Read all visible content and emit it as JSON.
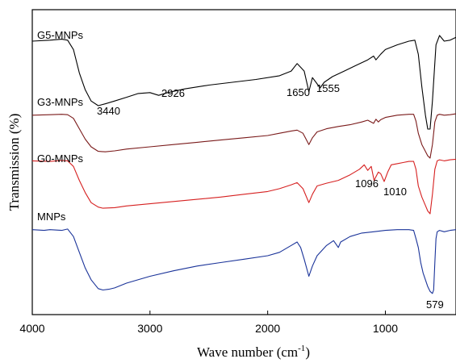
{
  "chart_data": {
    "type": "line",
    "title": "",
    "xlabel": "Wave number (cm",
    "xlabel_sup": "-1",
    "xlabel_end": ")",
    "ylabel": "Transmission (%)",
    "xlim": [
      4000,
      400
    ],
    "x_reversed": true,
    "xticks": [
      4000,
      3000,
      2000,
      1000
    ],
    "yticks": [],
    "grid": false,
    "series": [
      {
        "name": "G5-MNPs",
        "color": "#000000",
        "offset": 3,
        "points": [
          [
            4000,
            0.94
          ],
          [
            3850,
            0.95
          ],
          [
            3750,
            0.96
          ],
          [
            3700,
            0.95
          ],
          [
            3650,
            0.85
          ],
          [
            3600,
            0.6
          ],
          [
            3550,
            0.42
          ],
          [
            3500,
            0.3
          ],
          [
            3440,
            0.25
          ],
          [
            3380,
            0.27
          ],
          [
            3300,
            0.3
          ],
          [
            3200,
            0.34
          ],
          [
            3100,
            0.38
          ],
          [
            3000,
            0.39
          ],
          [
            2926,
            0.36
          ],
          [
            2850,
            0.39
          ],
          [
            2700,
            0.43
          ],
          [
            2500,
            0.47
          ],
          [
            2300,
            0.5
          ],
          [
            2100,
            0.53
          ],
          [
            1900,
            0.57
          ],
          [
            1800,
            0.62
          ],
          [
            1750,
            0.7
          ],
          [
            1720,
            0.66
          ],
          [
            1690,
            0.62
          ],
          [
            1650,
            0.4
          ],
          [
            1620,
            0.55
          ],
          [
            1590,
            0.5
          ],
          [
            1555,
            0.44
          ],
          [
            1520,
            0.5
          ],
          [
            1450,
            0.56
          ],
          [
            1350,
            0.62
          ],
          [
            1250,
            0.68
          ],
          [
            1150,
            0.74
          ],
          [
            1100,
            0.78
          ],
          [
            1080,
            0.74
          ],
          [
            1040,
            0.8
          ],
          [
            1000,
            0.85
          ],
          [
            900,
            0.9
          ],
          [
            800,
            0.94
          ],
          [
            750,
            0.95
          ],
          [
            720,
            0.8
          ],
          [
            690,
            0.45
          ],
          [
            660,
            0.15
          ],
          [
            640,
            0.0
          ],
          [
            620,
            0.0
          ],
          [
            600,
            0.3
          ],
          [
            570,
            0.9
          ],
          [
            540,
            1.0
          ],
          [
            500,
            0.94
          ],
          [
            450,
            0.95
          ],
          [
            400,
            0.98
          ]
        ]
      },
      {
        "name": "G3-MNPs",
        "color": "#7a1a1a",
        "offset": 2,
        "points": [
          [
            4000,
            0.95
          ],
          [
            3850,
            0.96
          ],
          [
            3750,
            0.97
          ],
          [
            3700,
            0.96
          ],
          [
            3650,
            0.88
          ],
          [
            3600,
            0.65
          ],
          [
            3550,
            0.42
          ],
          [
            3500,
            0.25
          ],
          [
            3440,
            0.15
          ],
          [
            3380,
            0.14
          ],
          [
            3300,
            0.16
          ],
          [
            3200,
            0.2
          ],
          [
            3000,
            0.25
          ],
          [
            2800,
            0.3
          ],
          [
            2600,
            0.35
          ],
          [
            2400,
            0.4
          ],
          [
            2200,
            0.45
          ],
          [
            2000,
            0.5
          ],
          [
            1900,
            0.55
          ],
          [
            1800,
            0.6
          ],
          [
            1750,
            0.62
          ],
          [
            1700,
            0.55
          ],
          [
            1650,
            0.3
          ],
          [
            1620,
            0.45
          ],
          [
            1580,
            0.58
          ],
          [
            1500,
            0.65
          ],
          [
            1400,
            0.7
          ],
          [
            1300,
            0.74
          ],
          [
            1200,
            0.8
          ],
          [
            1150,
            0.84
          ],
          [
            1100,
            0.77
          ],
          [
            1080,
            0.86
          ],
          [
            1060,
            0.8
          ],
          [
            1040,
            0.85
          ],
          [
            1000,
            0.9
          ],
          [
            900,
            0.95
          ],
          [
            800,
            0.97
          ],
          [
            760,
            0.97
          ],
          [
            740,
            0.82
          ],
          [
            720,
            0.55
          ],
          [
            690,
            0.3
          ],
          [
            660,
            0.15
          ],
          [
            640,
            0.05
          ],
          [
            620,
            0.0
          ],
          [
            600,
            0.3
          ],
          [
            580,
            0.8
          ],
          [
            560,
            0.95
          ],
          [
            540,
            0.97
          ],
          [
            500,
            0.95
          ],
          [
            450,
            0.96
          ],
          [
            400,
            0.98
          ]
        ]
      },
      {
        "name": "G0-MNPs",
        "color": "#d62020",
        "offset": 1,
        "points": [
          [
            4000,
            0.95
          ],
          [
            3850,
            0.94
          ],
          [
            3750,
            0.96
          ],
          [
            3700,
            0.95
          ],
          [
            3650,
            0.85
          ],
          [
            3600,
            0.6
          ],
          [
            3550,
            0.38
          ],
          [
            3500,
            0.2
          ],
          [
            3440,
            0.12
          ],
          [
            3400,
            0.1
          ],
          [
            3300,
            0.11
          ],
          [
            3200,
            0.14
          ],
          [
            3000,
            0.18
          ],
          [
            2800,
            0.22
          ],
          [
            2600,
            0.26
          ],
          [
            2400,
            0.3
          ],
          [
            2200,
            0.35
          ],
          [
            2000,
            0.4
          ],
          [
            1900,
            0.45
          ],
          [
            1800,
            0.52
          ],
          [
            1750,
            0.56
          ],
          [
            1700,
            0.45
          ],
          [
            1650,
            0.2
          ],
          [
            1620,
            0.35
          ],
          [
            1580,
            0.5
          ],
          [
            1500,
            0.55
          ],
          [
            1400,
            0.6
          ],
          [
            1300,
            0.7
          ],
          [
            1220,
            0.8
          ],
          [
            1180,
            0.88
          ],
          [
            1150,
            0.78
          ],
          [
            1120,
            0.85
          ],
          [
            1096,
            0.6
          ],
          [
            1060,
            0.75
          ],
          [
            1040,
            0.72
          ],
          [
            1010,
            0.58
          ],
          [
            980,
            0.75
          ],
          [
            950,
            0.88
          ],
          [
            900,
            0.9
          ],
          [
            850,
            0.92
          ],
          [
            800,
            0.94
          ],
          [
            760,
            0.94
          ],
          [
            740,
            0.8
          ],
          [
            720,
            0.5
          ],
          [
            690,
            0.3
          ],
          [
            660,
            0.15
          ],
          [
            640,
            0.05
          ],
          [
            620,
            0.0
          ],
          [
            600,
            0.35
          ],
          [
            580,
            0.8
          ],
          [
            560,
            0.95
          ],
          [
            540,
            0.97
          ],
          [
            500,
            0.95
          ],
          [
            450,
            0.97
          ],
          [
            400,
            0.98
          ]
        ]
      },
      {
        "name": "MNPs",
        "color": "#1a3399",
        "offset": 0,
        "points": [
          [
            4000,
            0.98
          ],
          [
            3900,
            0.97
          ],
          [
            3850,
            0.98
          ],
          [
            3750,
            0.97
          ],
          [
            3700,
            0.99
          ],
          [
            3650,
            0.88
          ],
          [
            3600,
            0.65
          ],
          [
            3550,
            0.42
          ],
          [
            3500,
            0.25
          ],
          [
            3440,
            0.12
          ],
          [
            3400,
            0.1
          ],
          [
            3350,
            0.11
          ],
          [
            3300,
            0.13
          ],
          [
            3200,
            0.2
          ],
          [
            3000,
            0.3
          ],
          [
            2800,
            0.38
          ],
          [
            2600,
            0.45
          ],
          [
            2400,
            0.5
          ],
          [
            2200,
            0.55
          ],
          [
            2000,
            0.6
          ],
          [
            1900,
            0.65
          ],
          [
            1800,
            0.75
          ],
          [
            1750,
            0.8
          ],
          [
            1720,
            0.72
          ],
          [
            1690,
            0.55
          ],
          [
            1650,
            0.3
          ],
          [
            1620,
            0.45
          ],
          [
            1580,
            0.6
          ],
          [
            1500,
            0.75
          ],
          [
            1440,
            0.82
          ],
          [
            1400,
            0.72
          ],
          [
            1380,
            0.8
          ],
          [
            1300,
            0.88
          ],
          [
            1200,
            0.93
          ],
          [
            1100,
            0.95
          ],
          [
            1000,
            0.97
          ],
          [
            900,
            0.98
          ],
          [
            800,
            0.98
          ],
          [
            760,
            0.97
          ],
          [
            740,
            0.85
          ],
          [
            720,
            0.72
          ],
          [
            700,
            0.5
          ],
          [
            680,
            0.35
          ],
          [
            660,
            0.25
          ],
          [
            640,
            0.15
          ],
          [
            620,
            0.08
          ],
          [
            600,
            0.05
          ],
          [
            590,
            0.1
          ],
          [
            580,
            0.5
          ],
          [
            570,
            0.85
          ],
          [
            560,
            0.95
          ],
          [
            540,
            0.97
          ],
          [
            500,
            0.95
          ],
          [
            450,
            0.97
          ],
          [
            400,
            0.98
          ]
        ]
      }
    ],
    "annotations": [
      {
        "text": "3440",
        "x": 3440,
        "series": "G5-MNPs"
      },
      {
        "text": "2926",
        "x": 2926,
        "series": "G5-MNPs"
      },
      {
        "text": "1650",
        "x": 1650,
        "series": "G5-MNPs"
      },
      {
        "text": "1555",
        "x": 1555,
        "series": "G5-MNPs"
      },
      {
        "text": "1096",
        "x": 1096,
        "series": "G0-MNPs"
      },
      {
        "text": "1010",
        "x": 1010,
        "series": "G0-MNPs"
      },
      {
        "text": "579",
        "x": 579,
        "series": "MNPs"
      }
    ]
  }
}
